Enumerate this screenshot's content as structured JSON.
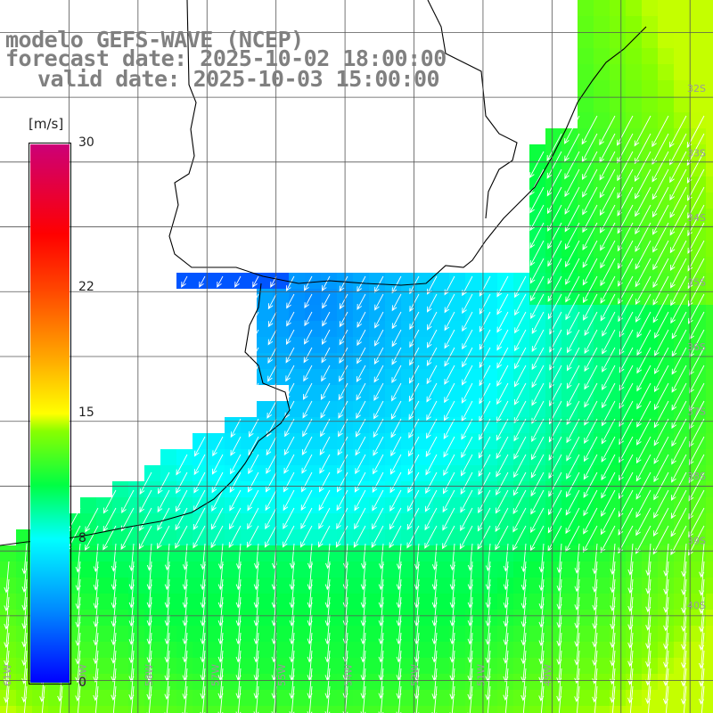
{
  "title": {
    "model": "modelo GEFS-WAVE (NCEP)",
    "forecast": "forecast date: 2025-10-02 18:00:00",
    "valid": "valid date: 2025-10-03 15:00:00"
  },
  "colorbar": {
    "unit": "[m/s]",
    "min": 0,
    "max": 30,
    "ticks": [
      {
        "label": "30",
        "value": 30
      },
      {
        "label": "22",
        "value": 22
      },
      {
        "label": "15",
        "value": 15
      },
      {
        "label": "8",
        "value": 8
      },
      {
        "label": "0",
        "value": 0
      }
    ],
    "stops": [
      {
        "value": 0,
        "color": "#0000ff"
      },
      {
        "value": 4,
        "color": "#0088ff"
      },
      {
        "value": 8,
        "color": "#00ffff"
      },
      {
        "value": 11,
        "color": "#00ff44"
      },
      {
        "value": 14,
        "color": "#88ff00"
      },
      {
        "value": 15,
        "color": "#ffff00"
      },
      {
        "value": 18,
        "color": "#ffaa00"
      },
      {
        "value": 22,
        "color": "#ff4400"
      },
      {
        "value": 25,
        "color": "#ff0000"
      },
      {
        "value": 30,
        "color": "#cc0077"
      }
    ]
  },
  "map": {
    "lon_range": [
      -64,
      -48.5
    ],
    "lat_range": [
      -42,
      -31
    ],
    "grid_lon_step": 1.5,
    "grid_lat_step": 1,
    "lat_labels": [
      "32S",
      "33S",
      "34S",
      "35S",
      "36S",
      "37S",
      "38S",
      "39S",
      "40S"
    ],
    "lon_labels": [
      "61W",
      "60W",
      "58W",
      "57W",
      "55W",
      "54W",
      "52W",
      "51W",
      "49W"
    ],
    "colors": {
      "land": "#ffffff",
      "coastline": "#000000",
      "grid": "#555555",
      "arrows": "#ffffff"
    }
  }
}
